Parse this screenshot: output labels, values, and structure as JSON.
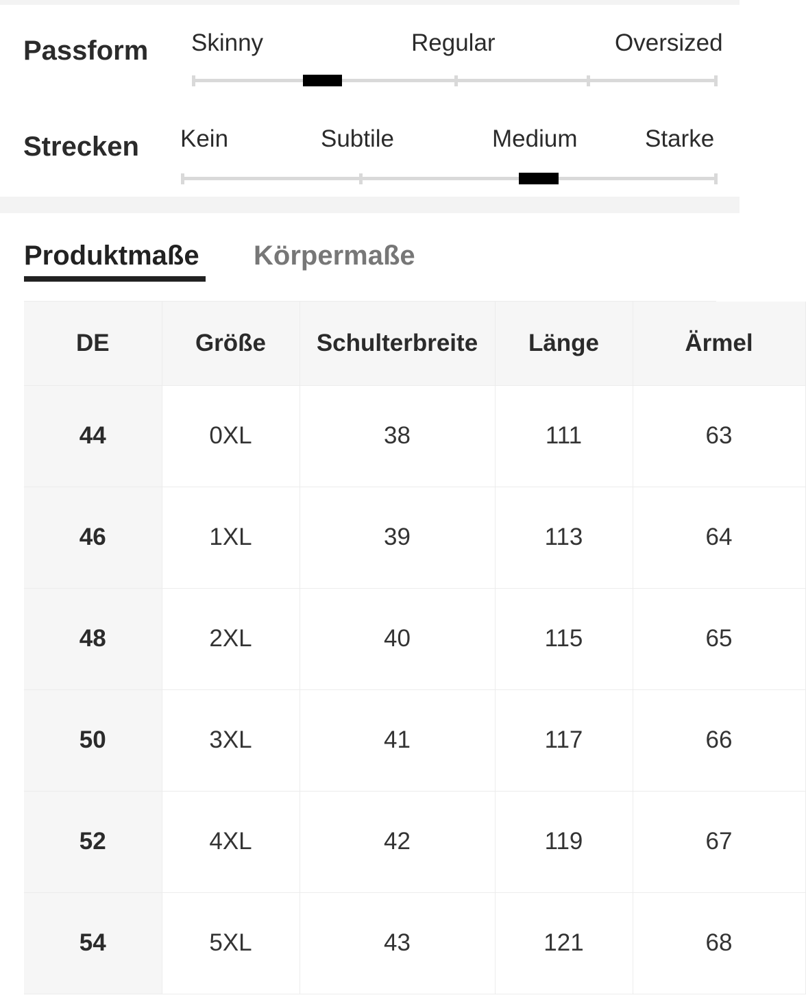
{
  "fit": {
    "passform": {
      "label": "Passform",
      "options": [
        "Skinny",
        "Regular",
        "Oversized"
      ],
      "selected_position_fraction": 0.25
    },
    "strecken": {
      "label": "Strecken",
      "options": [
        "Kein",
        "Subtile",
        "Medium",
        "Starke"
      ],
      "selected": "Medium"
    }
  },
  "tabs": {
    "active": "Produktmaße",
    "inactive": "Körpermaße"
  },
  "table": {
    "headers": [
      "DE",
      "Größe",
      "Schulterbreite",
      "Länge",
      "Ärmel"
    ],
    "rows": [
      [
        "44",
        "0XL",
        "38",
        "111",
        "63"
      ],
      [
        "46",
        "1XL",
        "39",
        "113",
        "64"
      ],
      [
        "48",
        "2XL",
        "40",
        "115",
        "65"
      ],
      [
        "50",
        "3XL",
        "41",
        "117",
        "66"
      ],
      [
        "52",
        "4XL",
        "42",
        "119",
        "67"
      ],
      [
        "54",
        "5XL",
        "43",
        "121",
        "68"
      ]
    ]
  }
}
